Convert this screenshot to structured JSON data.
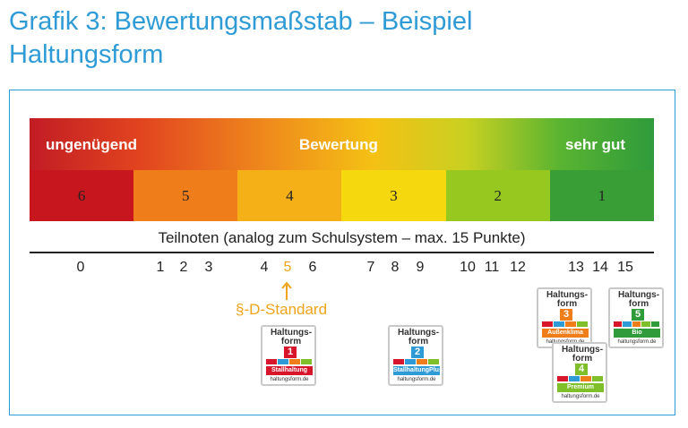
{
  "title": {
    "line1": "Grafik 3: Bewertungsmaßstab – Beispiel",
    "line2": "Haltungsform"
  },
  "scale": {
    "left_label": "ungenügend",
    "center_label": "Bewertung",
    "right_label": "sehr gut",
    "grades": [
      "6",
      "5",
      "4",
      "3",
      "2",
      "1"
    ],
    "grade_colors": [
      "#c7161e",
      "#ef7d1a",
      "#f4b016",
      "#f5d80e",
      "#97c820",
      "#3a9e36"
    ]
  },
  "teilnoten_label": "Teilnoten (analog zum Schulsystem – max. 15 Punkte)",
  "points": [
    "0",
    "1",
    "2",
    "3",
    "4",
    "5",
    "6",
    "7",
    "8",
    "9",
    "10",
    "11",
    "12",
    "13",
    "14",
    "15"
  ],
  "highlight_point": "5",
  "standard_label": "§-D-Standard",
  "badges": [
    {
      "title": "Haltungs-form",
      "level": "1",
      "name": "Stallhaltung",
      "url": "haltungsform.de",
      "color": "#d7162b"
    },
    {
      "title": "Haltungs-form",
      "level": "2",
      "name": "StallhaltungPlus",
      "url": "haltungsform.de",
      "color": "#2f9bd6"
    },
    {
      "title": "Haltungs-form",
      "level": "3",
      "name": "Außenklima",
      "url": "haltungsform.de",
      "color": "#ef7d1a"
    },
    {
      "title": "Haltungs-form",
      "level": "4",
      "name": "Premium",
      "url": "haltungsform.de",
      "color": "#7fbf2a"
    },
    {
      "title": "Haltungs-form",
      "level": "5",
      "name": "Bio",
      "url": "haltungsform.de",
      "color": "#2f9b3b"
    }
  ],
  "step_colors": [
    "#d7162b",
    "#2f9bd6",
    "#ef7d1a",
    "#7fbf2a",
    "#2f9b3b"
  ]
}
